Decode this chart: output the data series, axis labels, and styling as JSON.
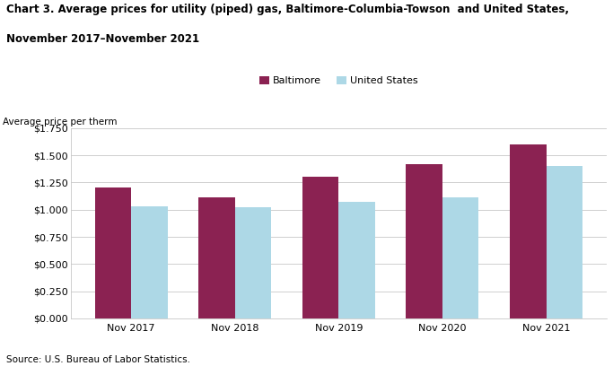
{
  "title_line1": "Chart 3. Average prices for utility (piped) gas, Baltimore-Columbia-Towson  and United States,",
  "title_line2": "November 2017–November 2021",
  "ylabel": "Average price per therm",
  "source": "Source: U.S. Bureau of Labor Statistics.",
  "categories": [
    "Nov 2017",
    "Nov 2018",
    "Nov 2019",
    "Nov 2020",
    "Nov 2021"
  ],
  "baltimore_values": [
    1.2,
    1.11,
    1.3,
    1.42,
    1.6
  ],
  "us_values": [
    1.03,
    1.02,
    1.07,
    1.11,
    1.4
  ],
  "baltimore_color": "#8B2252",
  "us_color": "#ADD8E6",
  "baltimore_label": "Baltimore",
  "us_label": "United States",
  "ylim": [
    0,
    1.75
  ],
  "yticks": [
    0.0,
    0.25,
    0.5,
    0.75,
    1.0,
    1.25,
    1.5,
    1.75
  ],
  "bar_width": 0.35,
  "background_color": "#ffffff",
  "grid_color": "#c8c8c8",
  "title_fontsize": 8.5,
  "axis_label_fontsize": 7.5,
  "tick_fontsize": 8,
  "legend_fontsize": 8,
  "source_fontsize": 7.5
}
